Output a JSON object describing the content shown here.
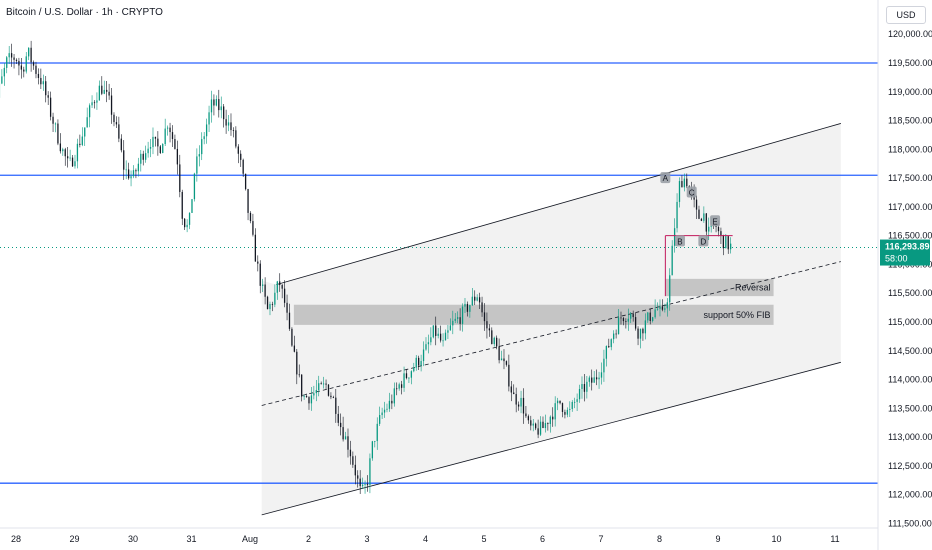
{
  "header": {
    "title": "Bitcoin / U.S. Dollar · 1h · CRYPTO",
    "currency": "USD"
  },
  "price_axis": {
    "ticks": [
      "120,000.00",
      "119,500.00",
      "119,000.00",
      "118,500.00",
      "118,000.00",
      "117,500.00",
      "117,000.00",
      "116,500.00",
      "116,000.00",
      "115,500.00",
      "115,000.00",
      "114,500.00",
      "114,000.00",
      "113,500.00",
      "113,000.00",
      "112,500.00",
      "112,000.00",
      "111,500.00"
    ],
    "tick_values": [
      120000,
      119500,
      119000,
      118500,
      118000,
      117500,
      117000,
      116500,
      116000,
      115500,
      115000,
      114500,
      114000,
      113500,
      113000,
      112500,
      112000,
      111500
    ],
    "current_price": "116,293.89",
    "countdown": "58:00"
  },
  "time_axis": {
    "labels": [
      "28",
      "29",
      "30",
      "31",
      "Aug",
      "2",
      "3",
      "4",
      "5",
      "6",
      "7",
      "8",
      "9",
      "10",
      "11"
    ],
    "label_days": [
      0,
      1,
      2,
      3,
      4,
      5,
      6,
      7,
      8,
      9,
      10,
      11,
      12,
      13,
      14
    ]
  },
  "annotations": {
    "reversal_label": "Reversal",
    "support_label": "support 50% FIB",
    "wave_labels": [
      "A",
      "B",
      "C",
      "D",
      "E"
    ]
  },
  "colors": {
    "bull": "#089981",
    "bear": "#131722",
    "level_line": "#2962ff",
    "channel": "#131722",
    "current_price": "#089981",
    "projection": "#c2185b"
  },
  "chart_data": {
    "type": "candlestick",
    "title": "Bitcoin / U.S. Dollar · 1h · CRYPTO",
    "interval": "1h",
    "ylim": [
      111500,
      120300
    ],
    "xlim_days": [
      0,
      14.2
    ],
    "current_price": 116293.89,
    "horizontal_levels": [
      119500,
      117550,
      112200
    ],
    "channel": {
      "upper": {
        "start": [
          4.45,
          115650
        ],
        "end": [
          14.1,
          118450
        ]
      },
      "lower": {
        "start": [
          4.2,
          111650
        ],
        "end": [
          14.1,
          114300
        ]
      },
      "mid": {
        "start": [
          4.2,
          113550
        ],
        "end": [
          14.1,
          116050
        ]
      }
    },
    "zones": [
      {
        "label": "Reversal",
        "from_day": 11.1,
        "to_day": 12.95,
        "low": 115450,
        "high": 115750
      },
      {
        "label": "support 50% FIB",
        "from_day": 4.75,
        "to_day": 12.95,
        "low": 114950,
        "high": 115300
      }
    ],
    "wave_labels": [
      {
        "text": "A",
        "day": 11.1,
        "price": 117500
      },
      {
        "text": "B",
        "day": 11.35,
        "price": 116400
      },
      {
        "text": "C",
        "day": 11.55,
        "price": 117250
      },
      {
        "text": "D",
        "day": 11.75,
        "price": 116400
      },
      {
        "text": "E",
        "day": 11.95,
        "price": 116750
      }
    ],
    "path": [
      [
        -0.45,
        118300
      ],
      [
        -0.3,
        119000
      ],
      [
        -0.15,
        119550
      ],
      [
        0.0,
        119600
      ],
      [
        0.1,
        119350
      ],
      [
        0.2,
        119700
      ],
      [
        0.3,
        119450
      ],
      [
        0.45,
        119150
      ],
      [
        0.6,
        118600
      ],
      [
        0.75,
        118100
      ],
      [
        0.9,
        117700
      ],
      [
        1.0,
        117900
      ],
      [
        1.15,
        118300
      ],
      [
        1.3,
        118800
      ],
      [
        1.45,
        119100
      ],
      [
        1.6,
        118800
      ],
      [
        1.75,
        118200
      ],
      [
        1.85,
        117650
      ],
      [
        2.0,
        117500
      ],
      [
        2.15,
        117900
      ],
      [
        2.3,
        118150
      ],
      [
        2.45,
        118000
      ],
      [
        2.6,
        118500
      ],
      [
        2.75,
        117900
      ],
      [
        2.85,
        116800
      ],
      [
        2.95,
        116600
      ],
      [
        3.05,
        117600
      ],
      [
        3.2,
        118200
      ],
      [
        3.35,
        118800
      ],
      [
        3.5,
        118700
      ],
      [
        3.6,
        118500
      ],
      [
        3.7,
        118300
      ],
      [
        3.85,
        117700
      ],
      [
        4.0,
        116700
      ],
      [
        4.1,
        116100
      ],
      [
        4.2,
        115600
      ],
      [
        4.3,
        115200
      ],
      [
        4.4,
        115400
      ],
      [
        4.5,
        115700
      ],
      [
        4.6,
        115300
      ],
      [
        4.7,
        114600
      ],
      [
        4.8,
        114200
      ],
      [
        4.9,
        113700
      ],
      [
        5.0,
        113700
      ],
      [
        5.15,
        113800
      ],
      [
        5.3,
        113900
      ],
      [
        5.45,
        113600
      ],
      [
        5.55,
        113200
      ],
      [
        5.7,
        112800
      ],
      [
        5.8,
        112400
      ],
      [
        5.9,
        112000
      ],
      [
        6.0,
        112200
      ],
      [
        6.1,
        112900
      ],
      [
        6.25,
        113400
      ],
      [
        6.4,
        113600
      ],
      [
        6.55,
        113900
      ],
      [
        6.7,
        114100
      ],
      [
        6.85,
        114300
      ],
      [
        7.0,
        114500
      ],
      [
        7.15,
        114850
      ],
      [
        7.3,
        114600
      ],
      [
        7.45,
        114950
      ],
      [
        7.6,
        115100
      ],
      [
        7.75,
        115300
      ],
      [
        7.9,
        115500
      ],
      [
        8.0,
        115000
      ],
      [
        8.15,
        114700
      ],
      [
        8.25,
        114450
      ],
      [
        8.4,
        114100
      ],
      [
        8.5,
        113700
      ],
      [
        8.65,
        113600
      ],
      [
        8.75,
        113200
      ],
      [
        8.85,
        113100
      ],
      [
        9.0,
        113150
      ],
      [
        9.15,
        113400
      ],
      [
        9.3,
        113600
      ],
      [
        9.45,
        113400
      ],
      [
        9.6,
        113700
      ],
      [
        9.75,
        113900
      ],
      [
        9.9,
        114000
      ],
      [
        10.05,
        114350
      ],
      [
        10.2,
        114800
      ],
      [
        10.35,
        115100
      ],
      [
        10.5,
        115150
      ],
      [
        10.65,
        114800
      ],
      [
        10.8,
        115050
      ],
      [
        10.95,
        115250
      ],
      [
        11.05,
        115100
      ],
      [
        11.15,
        115500
      ],
      [
        11.25,
        116600
      ],
      [
        11.35,
        117450
      ],
      [
        11.45,
        117500
      ],
      [
        11.55,
        117200
      ],
      [
        11.65,
        116800
      ],
      [
        11.75,
        116900
      ],
      [
        11.85,
        116500
      ],
      [
        11.95,
        116700
      ],
      [
        12.05,
        116450
      ],
      [
        12.15,
        116350
      ],
      [
        12.25,
        116300
      ]
    ]
  }
}
